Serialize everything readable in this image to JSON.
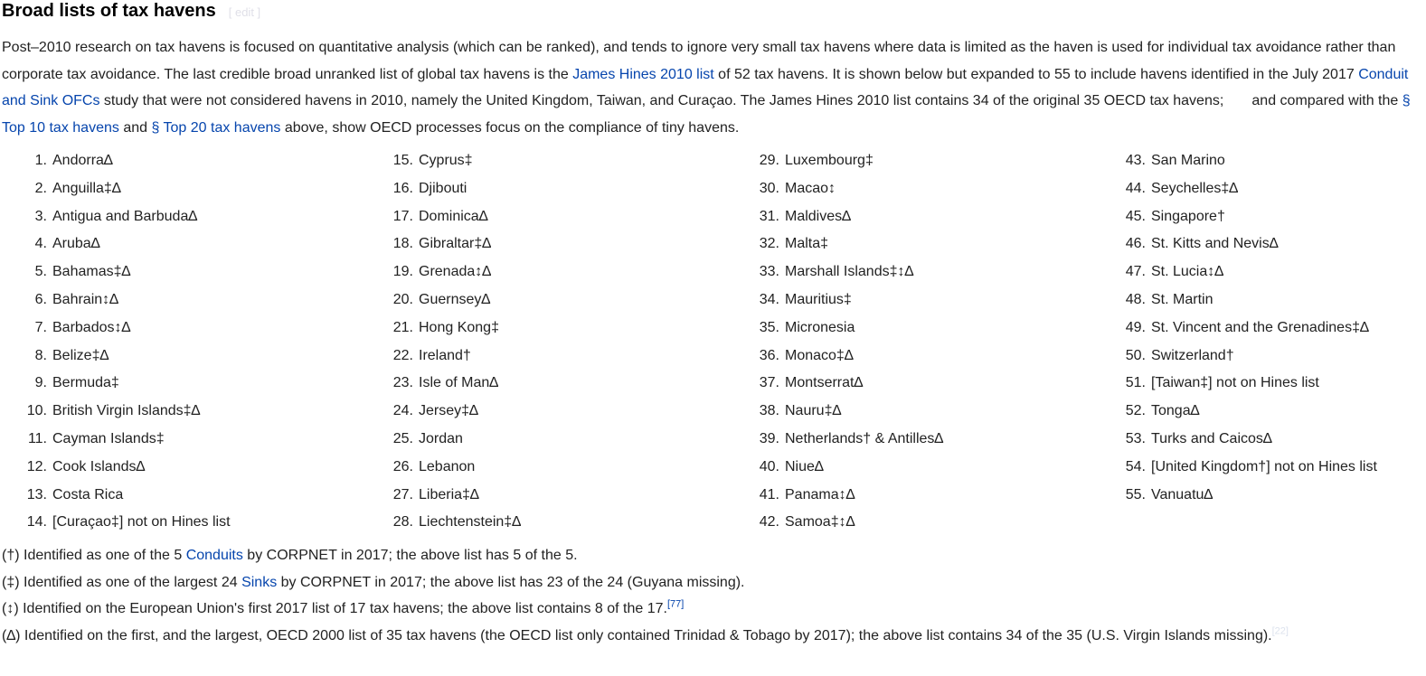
{
  "heading": {
    "title": "Broad lists of tax havens",
    "edit": "[ edit ]"
  },
  "paragraph": [
    {
      "t": "Post–2010 research on tax havens is focused on quantitative analysis (which can be ranked), and tends to ignore very small tax havens where data is limited as the haven is used for individual tax avoidance rather than corporate tax avoidance. The last credible broad unranked list of global tax havens is the "
    },
    {
      "link": "James Hines 2010 list"
    },
    {
      "t": " of 52 tax havens. It is shown below but expanded to 55 to include havens identified in the July 2017 "
    },
    {
      "link": "Conduit and Sink OFCs"
    },
    {
      "t": " study that were not considered havens in 2010, namely the United Kingdom, Taiwan, and Curaçao. The James Hines 2010 list contains 34 of the original 35 OECD tax havens;       and compared with the "
    },
    {
      "link": "§ Top 10 tax havens"
    },
    {
      "t": " and "
    },
    {
      "link": "§ Top 20 tax havens"
    },
    {
      "t": " above, show OECD processes focus on the compliance of tiny havens."
    }
  ],
  "havens": [
    "Andorra∆",
    "Anguilla‡∆",
    "Antigua and Barbuda∆",
    "Aruba∆",
    "Bahamas‡∆",
    "Bahrain↕∆",
    "Barbados↕∆",
    "Belize‡∆",
    "Bermuda‡",
    "British Virgin Islands‡∆",
    "Cayman Islands‡",
    "Cook Islands∆",
    "Costa Rica",
    "[Curaçao‡] not on Hines list",
    "Cyprus‡",
    "Djibouti",
    "Dominica∆",
    "Gibraltar‡∆",
    "Grenada↕∆",
    "Guernsey∆",
    "Hong Kong‡",
    "Ireland†",
    "Isle of Man∆",
    "Jersey‡∆",
    "Jordan",
    "Lebanon",
    "Liberia‡∆",
    "Liechtenstein‡∆",
    "Luxembourg‡",
    "Macao↕",
    "Maldives∆",
    "Malta‡",
    "Marshall Islands‡↕∆",
    "Mauritius‡",
    "Micronesia",
    "Monaco‡∆",
    "Montserrat∆",
    "Nauru‡∆",
    "Netherlands† & Antilles∆",
    "Niue∆",
    "Panama↕∆",
    "Samoa‡↕∆",
    "San Marino",
    "Seychelles‡∆",
    "Singapore†",
    "St. Kitts and Nevis∆",
    "St. Lucia↕∆",
    "St. Martin",
    "St. Vincent and the Grenadines‡∆",
    "Switzerland†",
    "[Taiwan‡] not on Hines list",
    "Tonga∆",
    "Turks and Caicos∆",
    "[United Kingdom†] not on Hines list",
    "Vanuatu∆"
  ],
  "notes": [
    [
      {
        "t": "(†) Identified as one of the 5 "
      },
      {
        "link": "Conduits"
      },
      {
        "t": " by CORPNET in 2017; the above list has 5 of the 5."
      }
    ],
    [
      {
        "t": "(‡) Identified as one of the largest 24 "
      },
      {
        "link": "Sinks"
      },
      {
        "t": " by CORPNET in 2017; the above list has 23 of the 24 (Guyana missing)."
      }
    ],
    [
      {
        "t": "(↕) Identified on the European Union's first 2017 list of 17 tax havens; the above list contains 8 of the 17."
      },
      {
        "ref": "[77]"
      }
    ],
    [
      {
        "t": "(∆) Identified on the first, and the largest, OECD 2000 list of 35 tax havens (the OECD list only contained Trinidad & Tobago by 2017); the above list contains 34 of the 35 (U.S. Virgin Islands missing)."
      },
      {
        "ref_faded": "[22]"
      }
    ]
  ],
  "colors": {
    "link": "#0645ad",
    "text": "#222222"
  }
}
